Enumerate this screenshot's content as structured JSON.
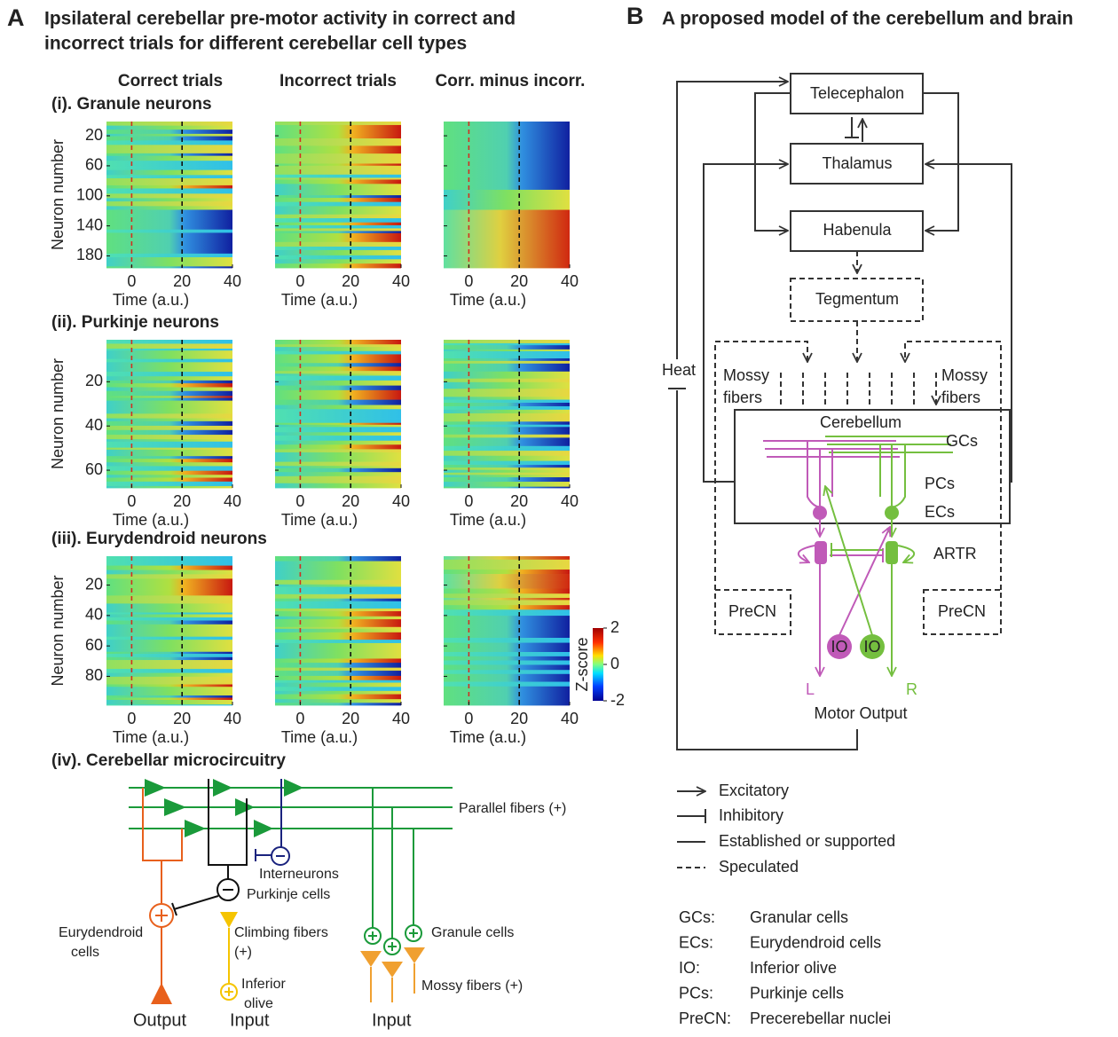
{
  "panel_a": {
    "label": "A",
    "title_lines": [
      "Ipsilateral cerebellar pre-motor activity in correct and",
      "incorrect trials for different cerebellar cell types"
    ],
    "column_titles": [
      "Correct trials",
      "Incorrect trials",
      "Corr. minus incorr."
    ],
    "x_label": "Time (a.u.)",
    "y_label": "Neuron number",
    "xlim": [
      -10,
      40
    ],
    "xticks": [
      0,
      20,
      40
    ],
    "rows": [
      {
        "title": "(i). Granule neurons",
        "ylim": [
          1,
          196
        ],
        "yticks": [
          20,
          60,
          100,
          140,
          180
        ]
      },
      {
        "title": "(ii). Purkinje neurons",
        "ylim": [
          1,
          68
        ],
        "yticks": [
          20,
          40,
          60
        ]
      },
      {
        "title": "(iii). Eurydendroid neurons",
        "ylim": [
          1,
          99
        ],
        "yticks": [
          20,
          40,
          60,
          80
        ]
      }
    ],
    "colorbar": {
      "label": "Z-score",
      "lim": [
        -2,
        2
      ],
      "ticks": [
        2,
        0,
        -2
      ]
    },
    "microcircuit": {
      "title": "(iv). Cerebellar microcircuitry",
      "parallel_fibers": "Parallel fibers (+)",
      "interneurons": "Interneurons",
      "purkinje": "Purkinje cells",
      "eurydendroid": [
        "Eurydendroid",
        "cells"
      ],
      "climbing": [
        "Climbing fibers",
        "(+)"
      ],
      "olive": [
        "Inferior",
        "olive"
      ],
      "granule": "Granule cells",
      "mossy": "Mossy fibers (+)",
      "output": "Output",
      "input_olive": "Input",
      "input_mossy": "Input"
    }
  },
  "panel_b": {
    "label": "B",
    "title": "A proposed model of the cerebellum and brain",
    "nodes": {
      "telencephalon": "Telecephalon",
      "thalamus": "Thalamus",
      "habenula": "Habenula",
      "tegmentum": "Tegmentum",
      "cerebellum": "Cerebellum",
      "mossy_left": [
        "Mossy",
        "fibers"
      ],
      "mossy_right": [
        "Mossy",
        "fibers"
      ],
      "gcs": "GCs",
      "pcs": "PCs",
      "ecs": "ECs",
      "artr": "ARTR",
      "precn_left": "PreCN",
      "precn_right": "PreCN",
      "io_left": "IO",
      "io_right": "IO",
      "left": "L",
      "right": "R",
      "motor": "Motor Output",
      "heat": "Heat"
    },
    "legend": [
      "Excitatory",
      "Inhibitory",
      "Established or supported",
      "Speculated"
    ],
    "abbreviations": [
      [
        "GCs:",
        "Granular cells"
      ],
      [
        "ECs:",
        "Eurydendroid cells"
      ],
      [
        "IO:",
        "Inferior olive"
      ],
      [
        "PCs:",
        "Purkinje cells"
      ],
      [
        "PreCN:",
        "Precerebellar nuclei"
      ]
    ]
  }
}
